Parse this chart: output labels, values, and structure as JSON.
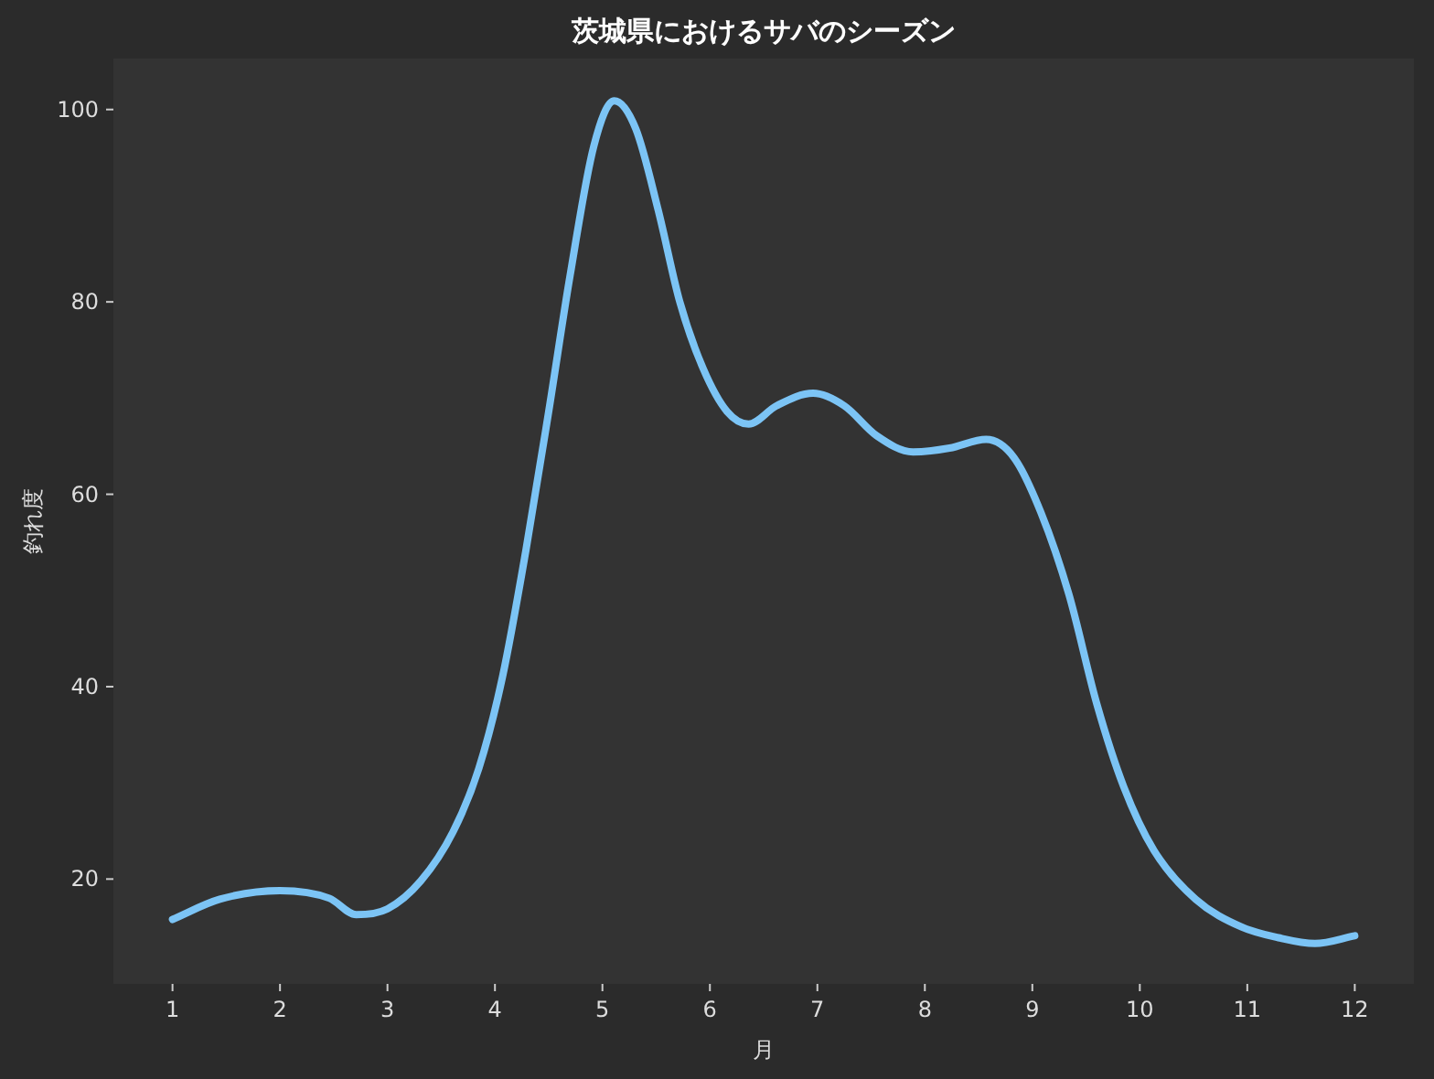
{
  "chart_data": {
    "type": "line",
    "title": "茨城県におけるサバのシーズン",
    "xlabel": "月",
    "ylabel": "釣れ度",
    "x": [
      1,
      1.44,
      2.0,
      2.46,
      2.71,
      3.0,
      3.31,
      3.61,
      3.85,
      4.07,
      4.29,
      4.5,
      4.7,
      4.92,
      5.11,
      5.31,
      5.52,
      5.72,
      5.94,
      6.16,
      6.36,
      6.62,
      6.96,
      7.25,
      7.55,
      7.89,
      8.23,
      8.57,
      8.83,
      9.08,
      9.34,
      9.6,
      9.85,
      10.13,
      10.52,
      10.95,
      11.29,
      11.63,
      12.0
    ],
    "series": [
      {
        "color": "#7cc4f5",
        "values": [
          15.8,
          17.9,
          18.8,
          18,
          16.3,
          16.9,
          19.8,
          24.9,
          31.5,
          41,
          54.3,
          68.6,
          82.8,
          96.2,
          100.9,
          98,
          89.5,
          80,
          73,
          68.6,
          67.3,
          69.2,
          70.5,
          69.2,
          66.1,
          64.4,
          64.8,
          65.7,
          63.8,
          58.1,
          49.6,
          38.2,
          29.6,
          23,
          17.9,
          15,
          13.9,
          13.3,
          14.1
        ]
      }
    ],
    "xlim": [
      0.45,
      12.55
    ],
    "xticks": [
      1,
      2,
      3,
      4,
      5,
      6,
      7,
      8,
      9,
      10,
      11,
      12
    ],
    "ylim": [
      9.1,
      105.3
    ],
    "yticks": [
      20,
      40,
      60,
      80,
      100
    ],
    "grid": false,
    "marker": "none",
    "line_style": "solid"
  }
}
